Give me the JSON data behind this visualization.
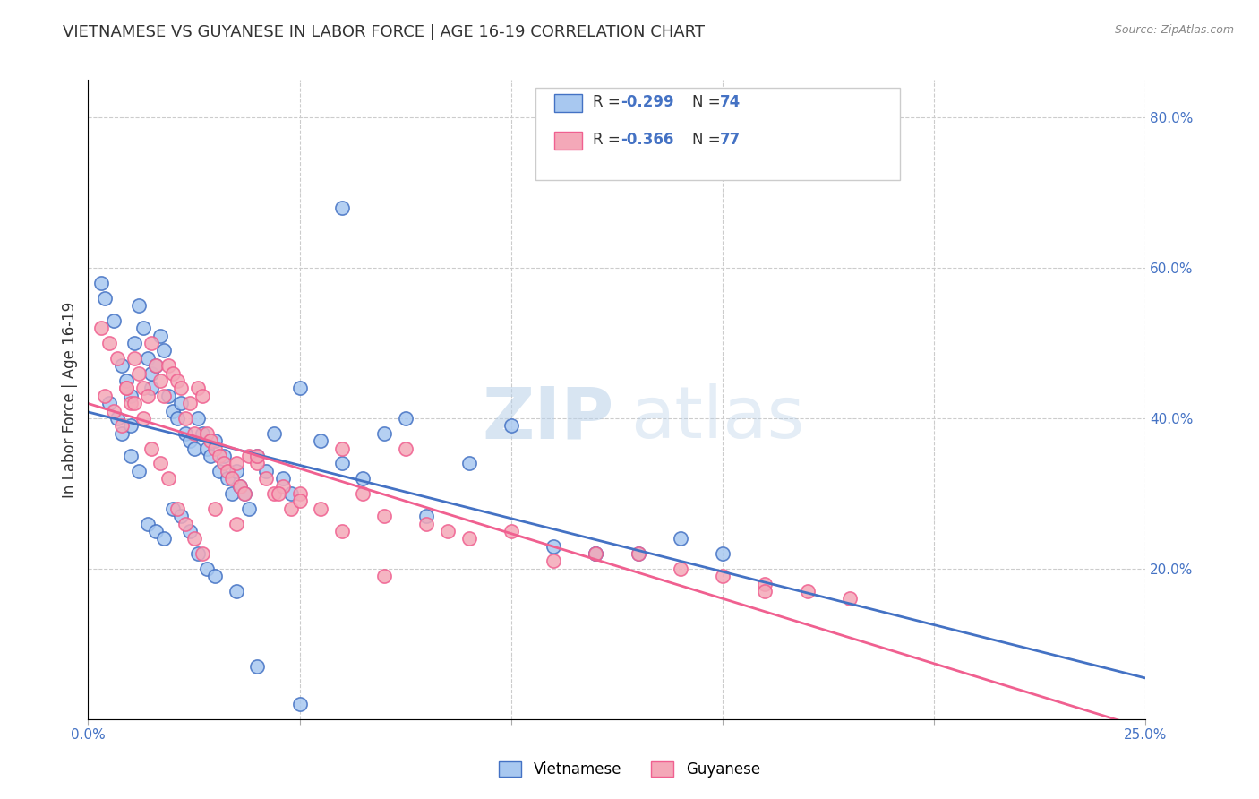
{
  "title": "VIETNAMESE VS GUYANESE IN LABOR FORCE | AGE 16-19 CORRELATION CHART",
  "source": "Source: ZipAtlas.com",
  "ylabel": "In Labor Force | Age 16-19",
  "xlim": [
    0.0,
    0.25
  ],
  "ylim": [
    0.0,
    0.85
  ],
  "xticks": [
    0.0,
    0.05,
    0.1,
    0.15,
    0.2,
    0.25
  ],
  "yticks_right": [
    0.2,
    0.4,
    0.6,
    0.8
  ],
  "vietnamese_color": "#a8c8f0",
  "guyanese_color": "#f4a8b8",
  "line_vietnamese_color": "#4472c4",
  "line_guyanese_color": "#f06090",
  "background_color": "#ffffff",
  "grid_color": "#cccccc",
  "vietnamese_x": [
    0.005,
    0.007,
    0.008,
    0.009,
    0.01,
    0.01,
    0.011,
    0.012,
    0.013,
    0.014,
    0.015,
    0.015,
    0.016,
    0.017,
    0.018,
    0.019,
    0.02,
    0.021,
    0.022,
    0.023,
    0.024,
    0.025,
    0.026,
    0.027,
    0.028,
    0.029,
    0.03,
    0.031,
    0.032,
    0.033,
    0.034,
    0.035,
    0.036,
    0.037,
    0.038,
    0.04,
    0.042,
    0.044,
    0.046,
    0.048,
    0.05,
    0.055,
    0.06,
    0.065,
    0.07,
    0.075,
    0.08,
    0.09,
    0.1,
    0.11,
    0.12,
    0.13,
    0.14,
    0.15,
    0.003,
    0.004,
    0.006,
    0.008,
    0.01,
    0.012,
    0.014,
    0.016,
    0.018,
    0.02,
    0.022,
    0.024,
    0.026,
    0.028,
    0.03,
    0.035,
    0.04,
    0.05,
    0.06,
    0.12
  ],
  "vietnamese_y": [
    0.42,
    0.4,
    0.38,
    0.45,
    0.43,
    0.39,
    0.5,
    0.55,
    0.52,
    0.48,
    0.46,
    0.44,
    0.47,
    0.51,
    0.49,
    0.43,
    0.41,
    0.4,
    0.42,
    0.38,
    0.37,
    0.36,
    0.4,
    0.38,
    0.36,
    0.35,
    0.37,
    0.33,
    0.35,
    0.32,
    0.3,
    0.33,
    0.31,
    0.3,
    0.28,
    0.35,
    0.33,
    0.38,
    0.32,
    0.3,
    0.44,
    0.37,
    0.34,
    0.32,
    0.38,
    0.4,
    0.27,
    0.34,
    0.39,
    0.23,
    0.22,
    0.22,
    0.24,
    0.22,
    0.58,
    0.56,
    0.53,
    0.47,
    0.35,
    0.33,
    0.26,
    0.25,
    0.24,
    0.28,
    0.27,
    0.25,
    0.22,
    0.2,
    0.19,
    0.17,
    0.07,
    0.02,
    0.68,
    0.22
  ],
  "guyanese_x": [
    0.004,
    0.006,
    0.008,
    0.009,
    0.01,
    0.011,
    0.012,
    0.013,
    0.014,
    0.015,
    0.016,
    0.017,
    0.018,
    0.019,
    0.02,
    0.021,
    0.022,
    0.023,
    0.024,
    0.025,
    0.026,
    0.027,
    0.028,
    0.029,
    0.03,
    0.031,
    0.032,
    0.033,
    0.034,
    0.035,
    0.036,
    0.037,
    0.038,
    0.04,
    0.042,
    0.044,
    0.046,
    0.048,
    0.05,
    0.055,
    0.06,
    0.065,
    0.07,
    0.075,
    0.08,
    0.085,
    0.09,
    0.1,
    0.11,
    0.12,
    0.13,
    0.14,
    0.15,
    0.16,
    0.17,
    0.18,
    0.003,
    0.005,
    0.007,
    0.009,
    0.011,
    0.013,
    0.015,
    0.017,
    0.019,
    0.021,
    0.023,
    0.025,
    0.027,
    0.03,
    0.035,
    0.04,
    0.045,
    0.05,
    0.06,
    0.07,
    0.16
  ],
  "guyanese_y": [
    0.43,
    0.41,
    0.39,
    0.44,
    0.42,
    0.48,
    0.46,
    0.44,
    0.43,
    0.5,
    0.47,
    0.45,
    0.43,
    0.47,
    0.46,
    0.45,
    0.44,
    0.4,
    0.42,
    0.38,
    0.44,
    0.43,
    0.38,
    0.37,
    0.36,
    0.35,
    0.34,
    0.33,
    0.32,
    0.34,
    0.31,
    0.3,
    0.35,
    0.34,
    0.32,
    0.3,
    0.31,
    0.28,
    0.3,
    0.28,
    0.36,
    0.3,
    0.27,
    0.36,
    0.26,
    0.25,
    0.24,
    0.25,
    0.21,
    0.22,
    0.22,
    0.2,
    0.19,
    0.18,
    0.17,
    0.16,
    0.52,
    0.5,
    0.48,
    0.44,
    0.42,
    0.4,
    0.36,
    0.34,
    0.32,
    0.28,
    0.26,
    0.24,
    0.22,
    0.28,
    0.26,
    0.35,
    0.3,
    0.29,
    0.25,
    0.19,
    0.17
  ]
}
